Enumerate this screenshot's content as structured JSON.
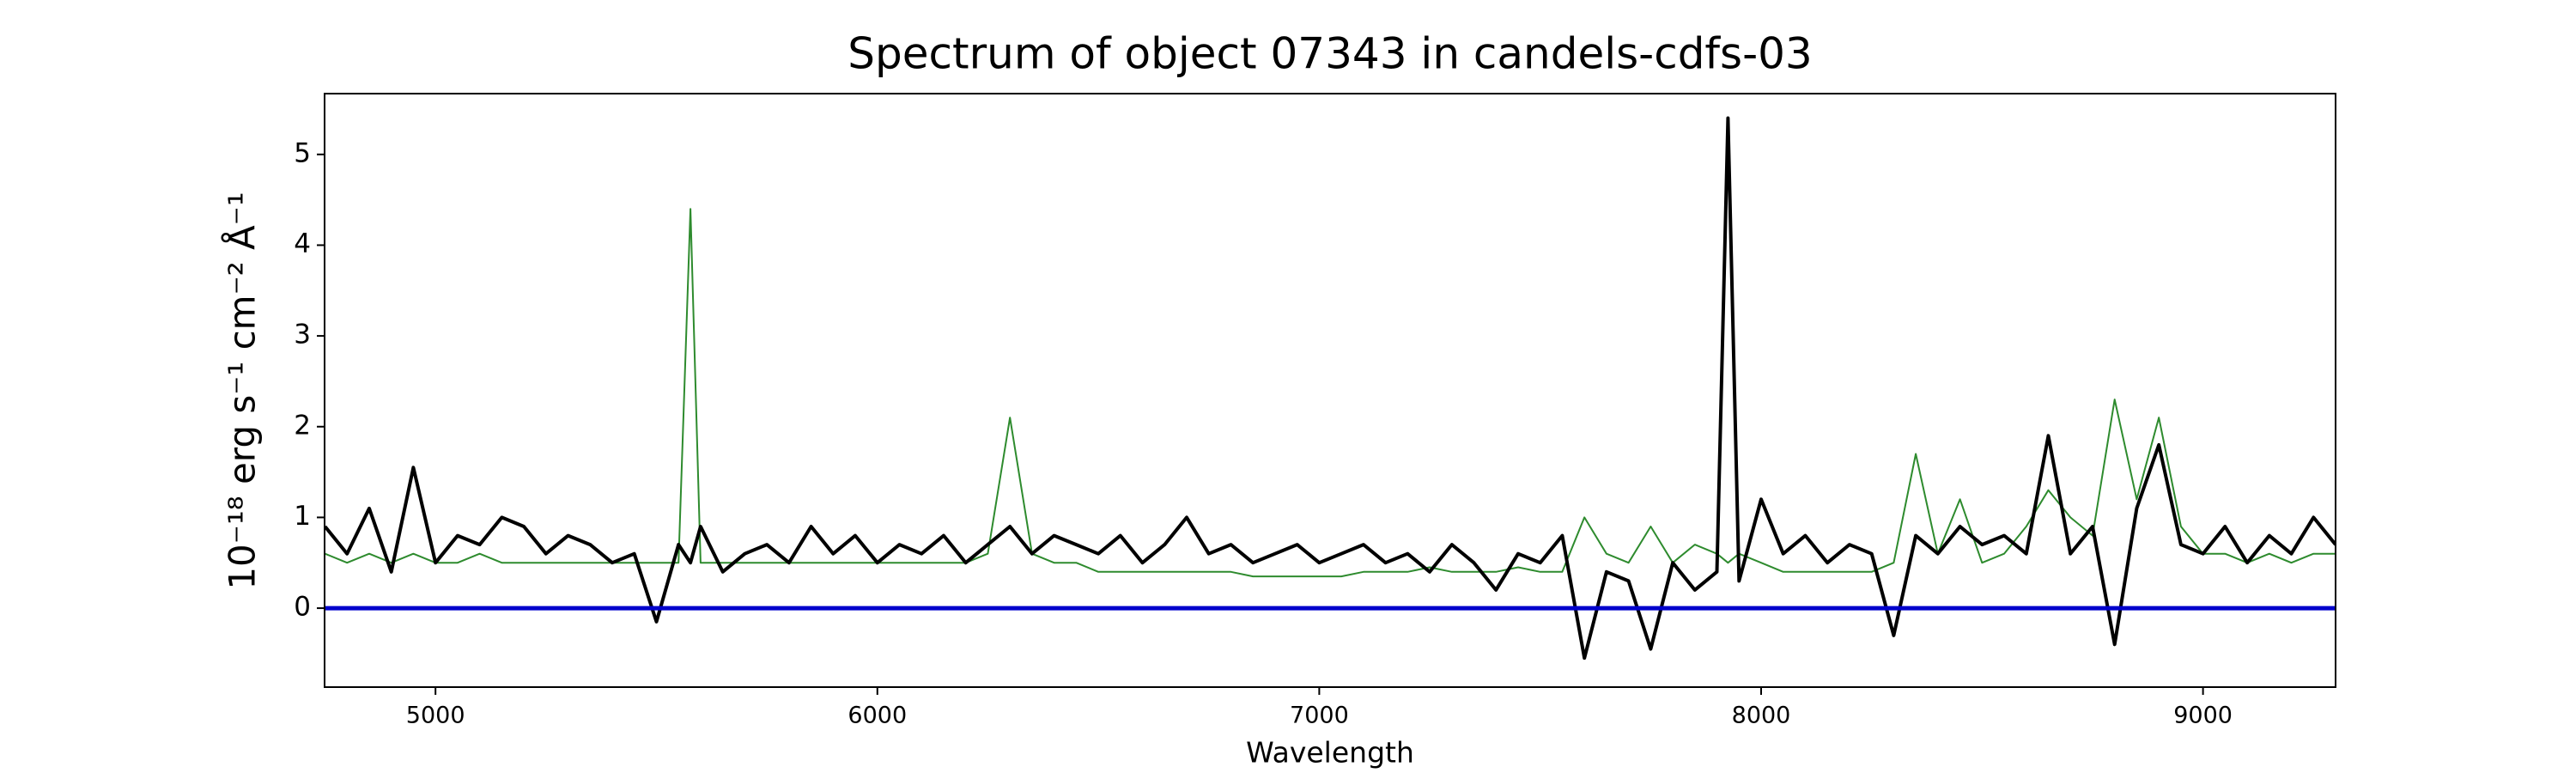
{
  "chart_data": {
    "type": "line",
    "title": "Spectrum of object 07343 in candels-cdfs-03",
    "xlabel": "Wavelength",
    "ylabel": "10⁻¹⁸ erg s⁻¹ cm⁻² Å⁻¹",
    "x": [
      4750,
      4800,
      4850,
      4900,
      4950,
      5000,
      5050,
      5100,
      5150,
      5200,
      5250,
      5300,
      5350,
      5400,
      5450,
      5500,
      5550,
      5577,
      5600,
      5650,
      5700,
      5750,
      5800,
      5850,
      5900,
      5950,
      6000,
      6050,
      6100,
      6150,
      6200,
      6250,
      6300,
      6350,
      6400,
      6450,
      6500,
      6550,
      6600,
      6650,
      6700,
      6750,
      6800,
      6850,
      6900,
      6950,
      7000,
      7050,
      7100,
      7150,
      7200,
      7250,
      7300,
      7350,
      7400,
      7450,
      7500,
      7550,
      7600,
      7650,
      7700,
      7750,
      7800,
      7850,
      7900,
      7925,
      7950,
      8000,
      8050,
      8100,
      8150,
      8200,
      8250,
      8300,
      8350,
      8400,
      8450,
      8500,
      8550,
      8600,
      8650,
      8700,
      8750,
      8800,
      8850,
      8900,
      8950,
      9000,
      9050,
      9100,
      9150,
      9200,
      9250,
      9300
    ],
    "series": [
      {
        "color": "#2e8b2e",
        "width": 2,
        "values": [
          0.6,
          0.5,
          0.6,
          0.5,
          0.6,
          0.5,
          0.5,
          0.6,
          0.5,
          0.5,
          0.5,
          0.5,
          0.5,
          0.5,
          0.5,
          0.5,
          0.5,
          4.4,
          0.5,
          0.5,
          0.5,
          0.5,
          0.5,
          0.5,
          0.5,
          0.5,
          0.5,
          0.5,
          0.5,
          0.5,
          0.5,
          0.6,
          2.1,
          0.6,
          0.5,
          0.5,
          0.4,
          0.4,
          0.4,
          0.4,
          0.4,
          0.4,
          0.4,
          0.35,
          0.35,
          0.35,
          0.35,
          0.35,
          0.4,
          0.4,
          0.4,
          0.45,
          0.4,
          0.4,
          0.4,
          0.45,
          0.4,
          0.4,
          1.0,
          0.6,
          0.5,
          0.9,
          0.5,
          0.7,
          0.6,
          0.5,
          0.6,
          0.5,
          0.4,
          0.4,
          0.4,
          0.4,
          0.4,
          0.5,
          1.7,
          0.6,
          1.2,
          0.5,
          0.6,
          0.9,
          1.3,
          1.0,
          0.8,
          2.3,
          1.2,
          2.1,
          0.9,
          0.6,
          0.6,
          0.5,
          0.6,
          0.5,
          0.6,
          0.6
        ]
      },
      {
        "color": "#000000",
        "width": 4,
        "values": [
          0.9,
          0.6,
          1.1,
          0.4,
          1.55,
          0.5,
          0.8,
          0.7,
          1.0,
          0.9,
          0.6,
          0.8,
          0.7,
          0.5,
          0.6,
          -0.15,
          0.7,
          0.5,
          0.9,
          0.4,
          0.6,
          0.7,
          0.5,
          0.9,
          0.6,
          0.8,
          0.5,
          0.7,
          0.6,
          0.8,
          0.5,
          0.7,
          0.9,
          0.6,
          0.8,
          0.7,
          0.6,
          0.8,
          0.5,
          0.7,
          1.0,
          0.6,
          0.7,
          0.5,
          0.6,
          0.7,
          0.5,
          0.6,
          0.7,
          0.5,
          0.6,
          0.4,
          0.7,
          0.5,
          0.2,
          0.6,
          0.5,
          0.8,
          -0.55,
          0.4,
          0.3,
          -0.45,
          0.5,
          0.2,
          0.4,
          5.4,
          0.3,
          1.2,
          0.6,
          0.8,
          0.5,
          0.7,
          0.6,
          -0.3,
          0.8,
          0.6,
          0.9,
          0.7,
          0.8,
          0.6,
          1.9,
          0.6,
          0.9,
          -0.4,
          1.1,
          1.8,
          0.7,
          0.6,
          0.9,
          0.5,
          0.8,
          0.6,
          1.0,
          0.7
        ]
      }
    ],
    "hlines": [
      {
        "value": 0,
        "color": "#0000cc"
      }
    ],
    "xlim": [
      4749,
      9300
    ],
    "ylim": [
      -0.87,
      5.67
    ],
    "xticks": [
      5000,
      6000,
      7000,
      8000,
      9000
    ],
    "yticks": [
      0,
      1,
      2,
      3,
      4,
      5
    ],
    "grid": false
  }
}
